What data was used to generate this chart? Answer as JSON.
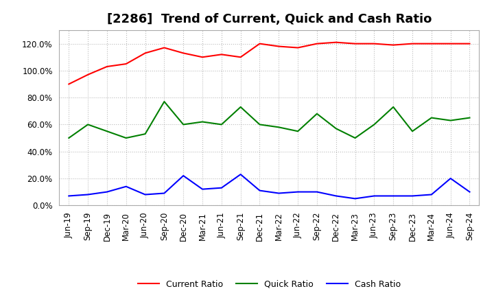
{
  "title": "[2286]  Trend of Current, Quick and Cash Ratio",
  "x_labels": [
    "Jun-19",
    "Sep-19",
    "Dec-19",
    "Mar-20",
    "Jun-20",
    "Sep-20",
    "Dec-20",
    "Mar-21",
    "Jun-21",
    "Sep-21",
    "Dec-21",
    "Mar-22",
    "Jun-22",
    "Sep-22",
    "Dec-22",
    "Mar-23",
    "Jun-23",
    "Sep-23",
    "Dec-23",
    "Mar-24",
    "Jun-24",
    "Sep-24"
  ],
  "current_ratio": [
    90,
    97,
    103,
    105,
    113,
    117,
    113,
    110,
    112,
    110,
    120,
    118,
    117,
    120,
    121,
    120,
    120,
    119,
    120,
    120,
    120,
    120
  ],
  "quick_ratio": [
    50,
    60,
    55,
    50,
    53,
    77,
    60,
    62,
    60,
    73,
    60,
    58,
    55,
    68,
    57,
    50,
    60,
    73,
    55,
    65,
    63,
    65
  ],
  "cash_ratio": [
    7,
    8,
    10,
    14,
    8,
    9,
    22,
    12,
    13,
    23,
    11,
    9,
    10,
    10,
    7,
    5,
    7,
    7,
    7,
    8,
    20,
    10
  ],
  "current_color": "#FF0000",
  "quick_color": "#008000",
  "cash_color": "#0000FF",
  "ylim": [
    0,
    130
  ],
  "yticks": [
    0,
    20,
    40,
    60,
    80,
    100,
    120
  ],
  "background_color": "#ffffff",
  "grid_color": "#bbbbbb",
  "title_fontsize": 13,
  "tick_fontsize": 8.5,
  "legend_labels": [
    "Current Ratio",
    "Quick Ratio",
    "Cash Ratio"
  ]
}
